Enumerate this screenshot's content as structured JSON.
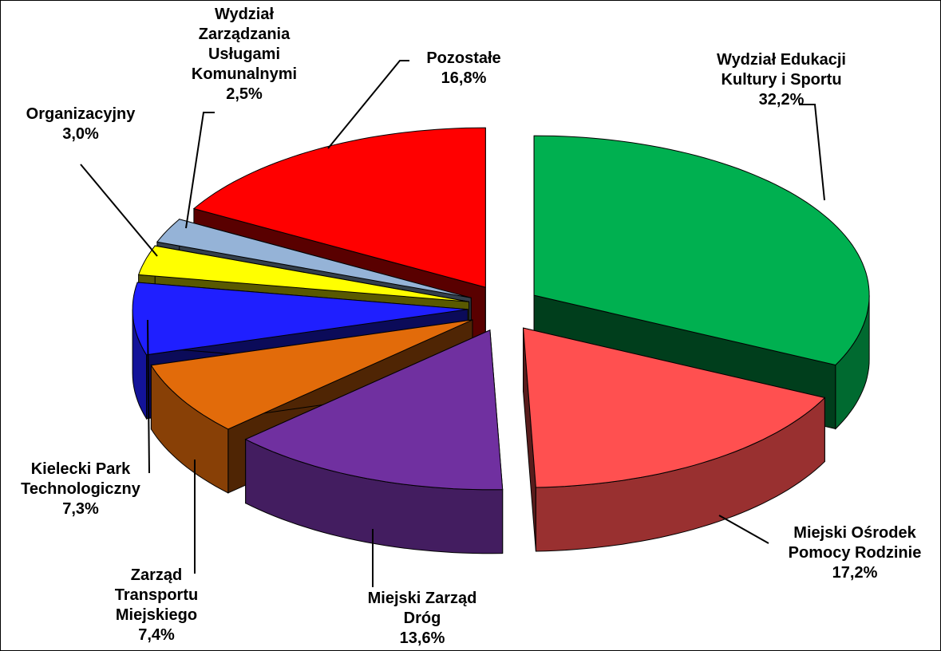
{
  "chart_data": {
    "type": "pie3d",
    "categories": [
      "Wydział Edukacji\nKultury i Sportu",
      "Miejski Ośrodek\nPomocy Rodzinie",
      "Miejski Zarząd\nDróg",
      "Zarząd\nTransportu\nMiejskiego",
      "Kielecki Park\nTechnologiczny",
      "Organizacyjny",
      "Wydział\nZarządzania\nUsługami\nKomunalnymi",
      "Pozostałe"
    ],
    "values": [
      32.2,
      17.2,
      13.6,
      7.4,
      7.3,
      3.0,
      2.5,
      16.8
    ],
    "value_labels": [
      "32,2%",
      "17,2%",
      "13,6%",
      "7,4%",
      "7,3%",
      "3,0%",
      "2,5%",
      "16,8%"
    ],
    "colors": [
      "#00b050",
      "#ff5050",
      "#7030a0",
      "#e26b0a",
      "#1f1fff",
      "#ffff00",
      "#95b3d7",
      "#ff0000"
    ]
  }
}
